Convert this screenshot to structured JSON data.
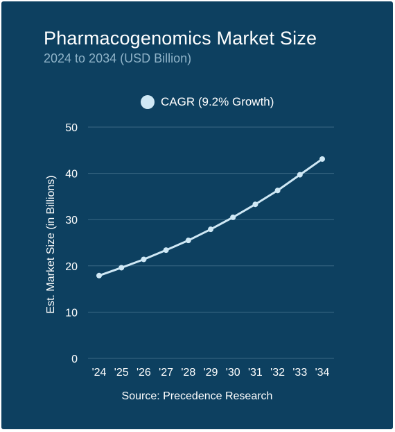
{
  "header": {
    "title": "Pharmacogenomics Market Size",
    "subtitle": "2024 to 2034 (USD Billion)"
  },
  "legend": {
    "label": "CAGR (9.2% Growth)"
  },
  "footer": {
    "source": "Source: Precedence Research"
  },
  "colors": {
    "background": "#0d4060",
    "line": "#cfe8f5",
    "grid": "#3b6884",
    "text": "#ffffff",
    "subtitle": "#8fb3c8"
  },
  "chart_data": {
    "type": "line",
    "title": "Pharmacogenomics Market Size",
    "subtitle": "2024 to 2034 (USD Billion)",
    "xlabel": "",
    "ylabel": "Est. Market Size (in Billions)",
    "categories": [
      "'24",
      "'25",
      "'26",
      "'27",
      "'28",
      "'29",
      "'30",
      "'31",
      "'32",
      "'33",
      "'34"
    ],
    "series": [
      {
        "name": "CAGR (9.2% Growth)",
        "values": [
          17.9,
          19.6,
          21.4,
          23.4,
          25.5,
          27.9,
          30.5,
          33.3,
          36.3,
          39.7,
          43.1
        ]
      }
    ],
    "ylim": [
      0,
      50
    ],
    "yticks": [
      0,
      10,
      20,
      30,
      40,
      50
    ],
    "grid": true,
    "legend": "top-center",
    "source": "Source: Precedence Research"
  }
}
